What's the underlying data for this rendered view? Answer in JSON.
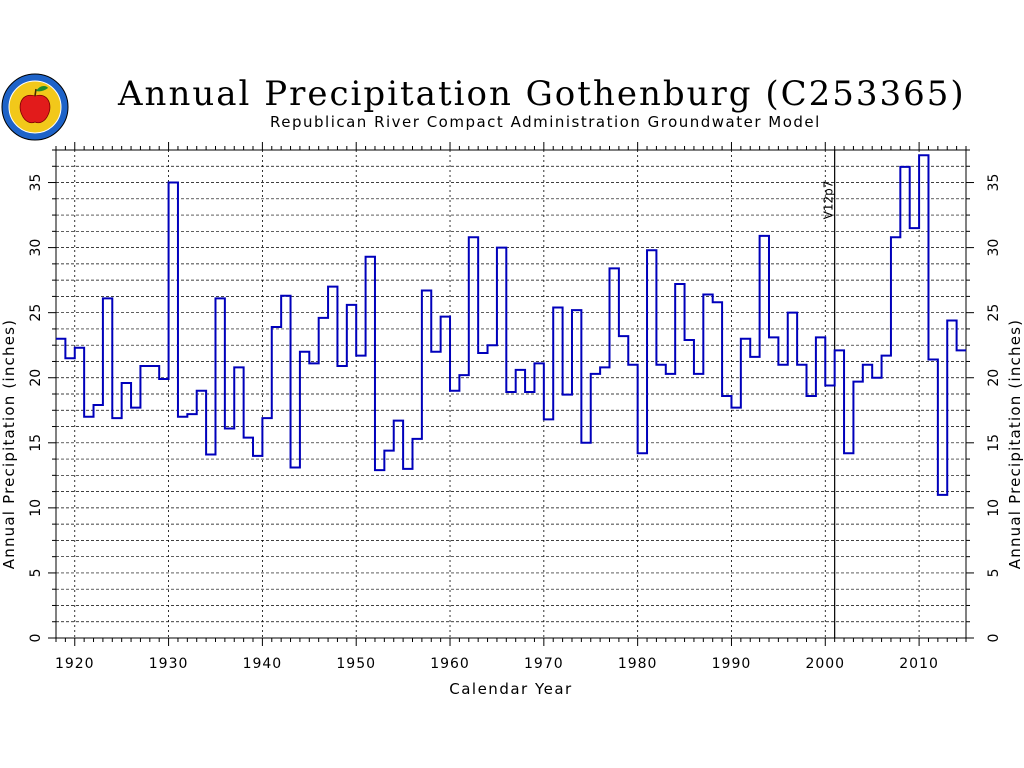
{
  "title": "Annual Precipitation Gothenburg (C253365)",
  "subtitle": "Republican River Compact Administration Groundwater Model",
  "logo": {
    "icon": "apple-seal-icon",
    "caption": "NEBRASKA"
  },
  "colors": {
    "series": "#0000bb",
    "axis": "#000000",
    "background": "#ffffff"
  },
  "chart_data": {
    "type": "line",
    "step": true,
    "title": "Annual Precipitation Gothenburg (C253365)",
    "subtitle": "Republican River Compact Administration Groundwater Model",
    "xlabel": "Calendar Year",
    "ylabel": "Annual Precipitation (inches)",
    "xlim": [
      1918,
      2015
    ],
    "ylim": [
      0,
      37.5
    ],
    "xticks": [
      1920,
      1930,
      1940,
      1950,
      1960,
      1970,
      1980,
      1990,
      2000,
      2010
    ],
    "yticks": [
      0,
      5,
      10,
      15,
      20,
      25,
      30,
      35
    ],
    "grid": true,
    "annotation": {
      "x": 2001,
      "label": "V12p7"
    },
    "series": [
      {
        "x": [
          1918,
          1919,
          1920,
          1921,
          1922,
          1923,
          1924,
          1925,
          1926,
          1927,
          1928,
          1929,
          1930,
          1931,
          1932,
          1933,
          1934,
          1935,
          1936,
          1937,
          1938,
          1939,
          1940,
          1941,
          1942,
          1943,
          1944,
          1945,
          1946,
          1947,
          1948,
          1949,
          1950,
          1951,
          1952,
          1953,
          1954,
          1955,
          1956,
          1957,
          1958,
          1959,
          1960,
          1961,
          1962,
          1963,
          1964,
          1965,
          1966,
          1967,
          1968,
          1969,
          1970,
          1971,
          1972,
          1973,
          1974,
          1975,
          1976,
          1977,
          1978,
          1979,
          1980,
          1981,
          1982,
          1983,
          1984,
          1985,
          1986,
          1987,
          1988,
          1989,
          1990,
          1991,
          1992,
          1993,
          1994,
          1995,
          1996,
          1997,
          1998,
          1999,
          2000,
          2001,
          2002,
          2003,
          2004,
          2005,
          2006,
          2007,
          2008,
          2009,
          2010,
          2011,
          2012,
          2013,
          2014
        ],
        "values": [
          23.0,
          21.5,
          22.3,
          17.0,
          17.9,
          26.1,
          16.9,
          19.6,
          17.7,
          20.9,
          20.9,
          19.9,
          35.0,
          17.0,
          17.2,
          19.0,
          14.1,
          26.1,
          16.1,
          20.8,
          15.4,
          14.0,
          16.9,
          23.9,
          26.3,
          13.1,
          22.0,
          21.1,
          24.6,
          27.0,
          20.9,
          25.6,
          21.7,
          29.3,
          12.9,
          14.4,
          16.7,
          13.0,
          15.3,
          26.7,
          22.0,
          24.7,
          19.0,
          20.2,
          30.8,
          21.9,
          22.5,
          30.0,
          18.9,
          20.6,
          18.9,
          21.1,
          16.8,
          25.4,
          18.7,
          25.2,
          15.0,
          20.3,
          20.8,
          28.4,
          23.2,
          21.0,
          14.2,
          29.8,
          21.0,
          20.3,
          27.2,
          22.9,
          20.3,
          26.4,
          25.8,
          18.6,
          17.7,
          23.0,
          21.6,
          30.9,
          23.1,
          21.0,
          25.0,
          21.0,
          18.6,
          23.1,
          19.4,
          22.1,
          14.2,
          19.7,
          21.0,
          20.0,
          21.7,
          30.8,
          36.2,
          31.5,
          37.1,
          21.4,
          11.0,
          24.4,
          22.1
        ]
      }
    ]
  }
}
